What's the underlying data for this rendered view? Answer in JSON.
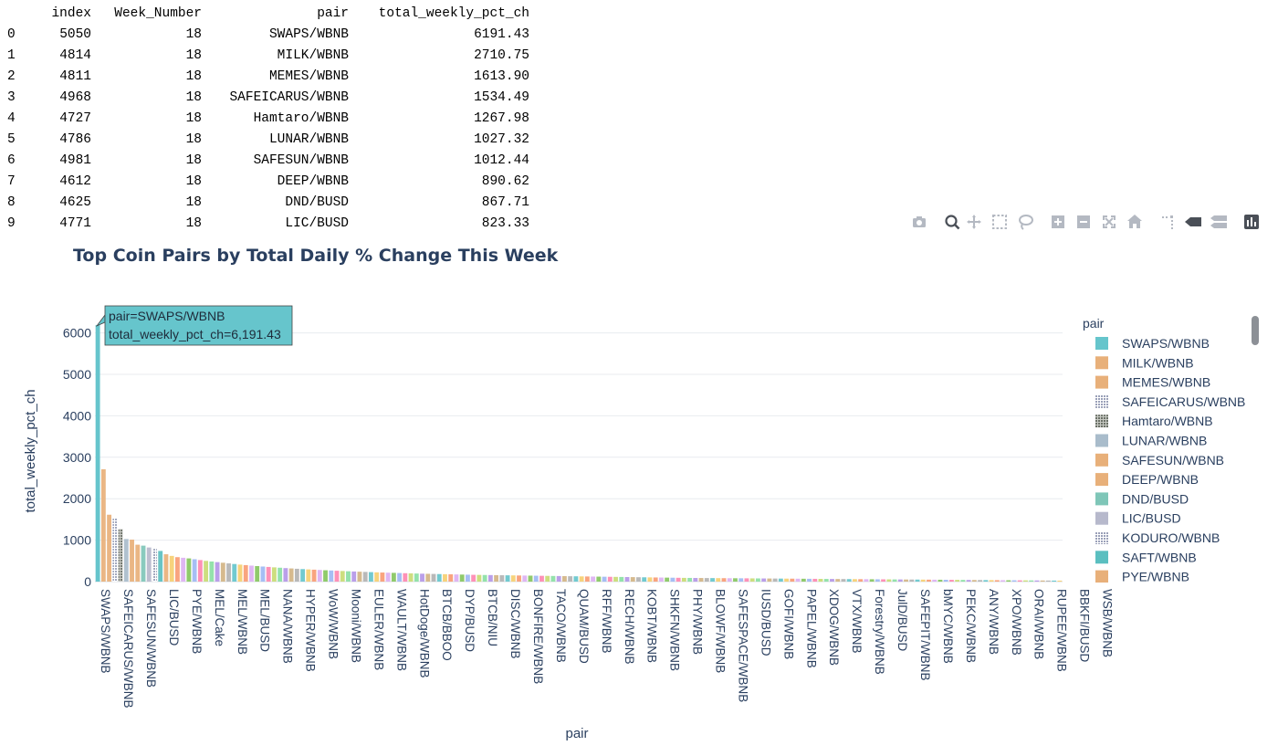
{
  "table": {
    "columns": [
      "",
      "index",
      "Week_Number",
      "pair",
      "total_weekly_pct_ch"
    ],
    "rows": [
      [
        "0",
        "5050",
        "18",
        "SWAPS/WBNB",
        "6191.43"
      ],
      [
        "1",
        "4814",
        "18",
        "MILK/WBNB",
        "2710.75"
      ],
      [
        "2",
        "4811",
        "18",
        "MEMES/WBNB",
        "1613.90"
      ],
      [
        "3",
        "4968",
        "18",
        "SAFEICARUS/WBNB",
        "1534.49"
      ],
      [
        "4",
        "4727",
        "18",
        "Hamtaro/WBNB",
        "1267.98"
      ],
      [
        "5",
        "4786",
        "18",
        "LUNAR/WBNB",
        "1027.32"
      ],
      [
        "6",
        "4981",
        "18",
        "SAFESUN/WBNB",
        "1012.44"
      ],
      [
        "7",
        "4612",
        "18",
        "DEEP/WBNB",
        "890.62"
      ],
      [
        "8",
        "4625",
        "18",
        "DND/BUSD",
        "867.71"
      ],
      [
        "9",
        "4771",
        "18",
        "LIC/BUSD",
        "823.33"
      ]
    ]
  },
  "modebar": [
    "camera-icon",
    "zoom-icon",
    "pan-icon",
    "box-select-icon",
    "lasso-select-icon",
    "zoom-in-icon",
    "zoom-out-icon",
    "autoscale-icon",
    "reset-axes-icon",
    "spike-lines-icon",
    "hover-closest-icon",
    "hover-compare-icon",
    "plotly-logo-icon"
  ],
  "chart_data": {
    "type": "bar",
    "title": "Top Coin Pairs by Total Daily % Change This Week",
    "xlabel": "pair",
    "ylabel": "total_weekly_pct_ch",
    "ylim": [
      0,
      6300
    ],
    "yticks": [
      0,
      1000,
      2000,
      3000,
      4000,
      5000,
      6000
    ],
    "grid": true,
    "legend_title": "pair",
    "legend_position": "right",
    "tick_labels": [
      "SWAPS/WBNB",
      "SAFEICARUS/WBNB",
      "SAFESUN/WBNB",
      "LIC/BUSD",
      "PYE/WBNB",
      "MEL/Cake",
      "MEL/WBNB",
      "MEL/BUSD",
      "NANA/WBNB",
      "HYPER/WBNB",
      "WoW/WBNB",
      "Mooni/WBNB",
      "EULER/WBNB",
      "WAULT/WBNB",
      "HotDoge/WBNB",
      "BTCB/BBOO",
      "DYP/BUSD",
      "BTCB/NIU",
      "DISC/WBNB",
      "BONFIRE/WBNB",
      "TACO/WBNB",
      "QUAM/BUSD",
      "RFF/WBNB",
      "RECH/WBNB",
      "KOBT/WBNB",
      "SHKFN/WBNB",
      "PHY/WBNB",
      "BLOWF/WBNB",
      "SAFESPACE/WBNB",
      "IUSD/BUSD",
      "GOFI/WBNB",
      "PAPEL/WBNB",
      "XDOG/WBNB",
      "VTX/WBNB",
      "Forestry/WBNB",
      "JulD/BUSD",
      "SAFEPIT/WBNB",
      "bMYC/WBNB",
      "PEKC/WBNB",
      "ANY/WBNB",
      "XPO/WBNB",
      "ORAI/WBNB",
      "RUPEE/WBNB",
      "BBKFI/BUSD",
      "WSB/WBNB"
    ],
    "values": [
      6191.43,
      2710.75,
      1613.9,
      1534.49,
      1267.98,
      1027.32,
      1012.44,
      890.62,
      867.71,
      823.33,
      790,
      740,
      660,
      620,
      590,
      575,
      560,
      540,
      520,
      500,
      485,
      470,
      455,
      440,
      425,
      410,
      398,
      386,
      375,
      364,
      354,
      344,
      335,
      326,
      318,
      310,
      302,
      295,
      288,
      281,
      274,
      268,
      262,
      256,
      250,
      244,
      239,
      234,
      229,
      224,
      219,
      215,
      211,
      207,
      203,
      199,
      195,
      191,
      188,
      185,
      182,
      179,
      176,
      173,
      170,
      167,
      164,
      162,
      160,
      158,
      156,
      154,
      152,
      150,
      148,
      146,
      144,
      142,
      140,
      138,
      136,
      134,
      132,
      130,
      128,
      126,
      124,
      122,
      120,
      118,
      116,
      114,
      112,
      110,
      108,
      106,
      104,
      102,
      100,
      98,
      96,
      94,
      92,
      90,
      89,
      88,
      87,
      86,
      85,
      84,
      83,
      82,
      81,
      80,
      79,
      78,
      77,
      76,
      75,
      74,
      73,
      72,
      71,
      70,
      69,
      68,
      67,
      66,
      65,
      64,
      63,
      62,
      61,
      60,
      59,
      58,
      57,
      56,
      55,
      54,
      53,
      52,
      51,
      50,
      49,
      48,
      47,
      46,
      45,
      44,
      43,
      42,
      41,
      40,
      39,
      38,
      37,
      36,
      35,
      34,
      33,
      32,
      31,
      30,
      29,
      28,
      27,
      26,
      25,
      24
    ],
    "colors": [
      "#66c5cc",
      "#f6cf71",
      "#f89c74",
      "#dcb0f2",
      "#87c55f",
      "#9eb9f3",
      "#fe88b1",
      "#c9db74",
      "#8be0a4",
      "#b497e7",
      "#d3b484",
      "#b3b3b3"
    ],
    "legend": [
      {
        "label": "SWAPS/WBNB",
        "color": "#66c5cc",
        "pattern": "solid"
      },
      {
        "label": "MILK/WBNB",
        "color": "#e8b07a",
        "pattern": "solid"
      },
      {
        "label": "MEMES/WBNB",
        "color": "#e8b07a",
        "pattern": "solid"
      },
      {
        "label": "SAFEICARUS/WBNB",
        "color": "#c9cde6",
        "pattern": "dots"
      },
      {
        "label": "Hamtaro/WBNB",
        "color": "#8a8f87",
        "pattern": "dots"
      },
      {
        "label": "LUNAR/WBNB",
        "color": "#a9bccb",
        "pattern": "solid"
      },
      {
        "label": "SAFESUN/WBNB",
        "color": "#e8b07a",
        "pattern": "solid"
      },
      {
        "label": "DEEP/WBNB",
        "color": "#e8b07a",
        "pattern": "solid"
      },
      {
        "label": "DND/BUSD",
        "color": "#7fc6b8",
        "pattern": "solid"
      },
      {
        "label": "LIC/BUSD",
        "color": "#b7b9cc",
        "pattern": "solid"
      },
      {
        "label": "KODURO/WBNB",
        "color": "#a3a6b3",
        "pattern": "dots"
      },
      {
        "label": "SAFT/WBNB",
        "color": "#5bbfc0",
        "pattern": "solid"
      },
      {
        "label": "PYE/WBNB",
        "color": "#e8b07a",
        "pattern": "solid"
      }
    ],
    "tooltip": {
      "line1": "pair=SWAPS/WBNB",
      "line2": "total_weekly_pct_ch=6,191.43"
    }
  }
}
